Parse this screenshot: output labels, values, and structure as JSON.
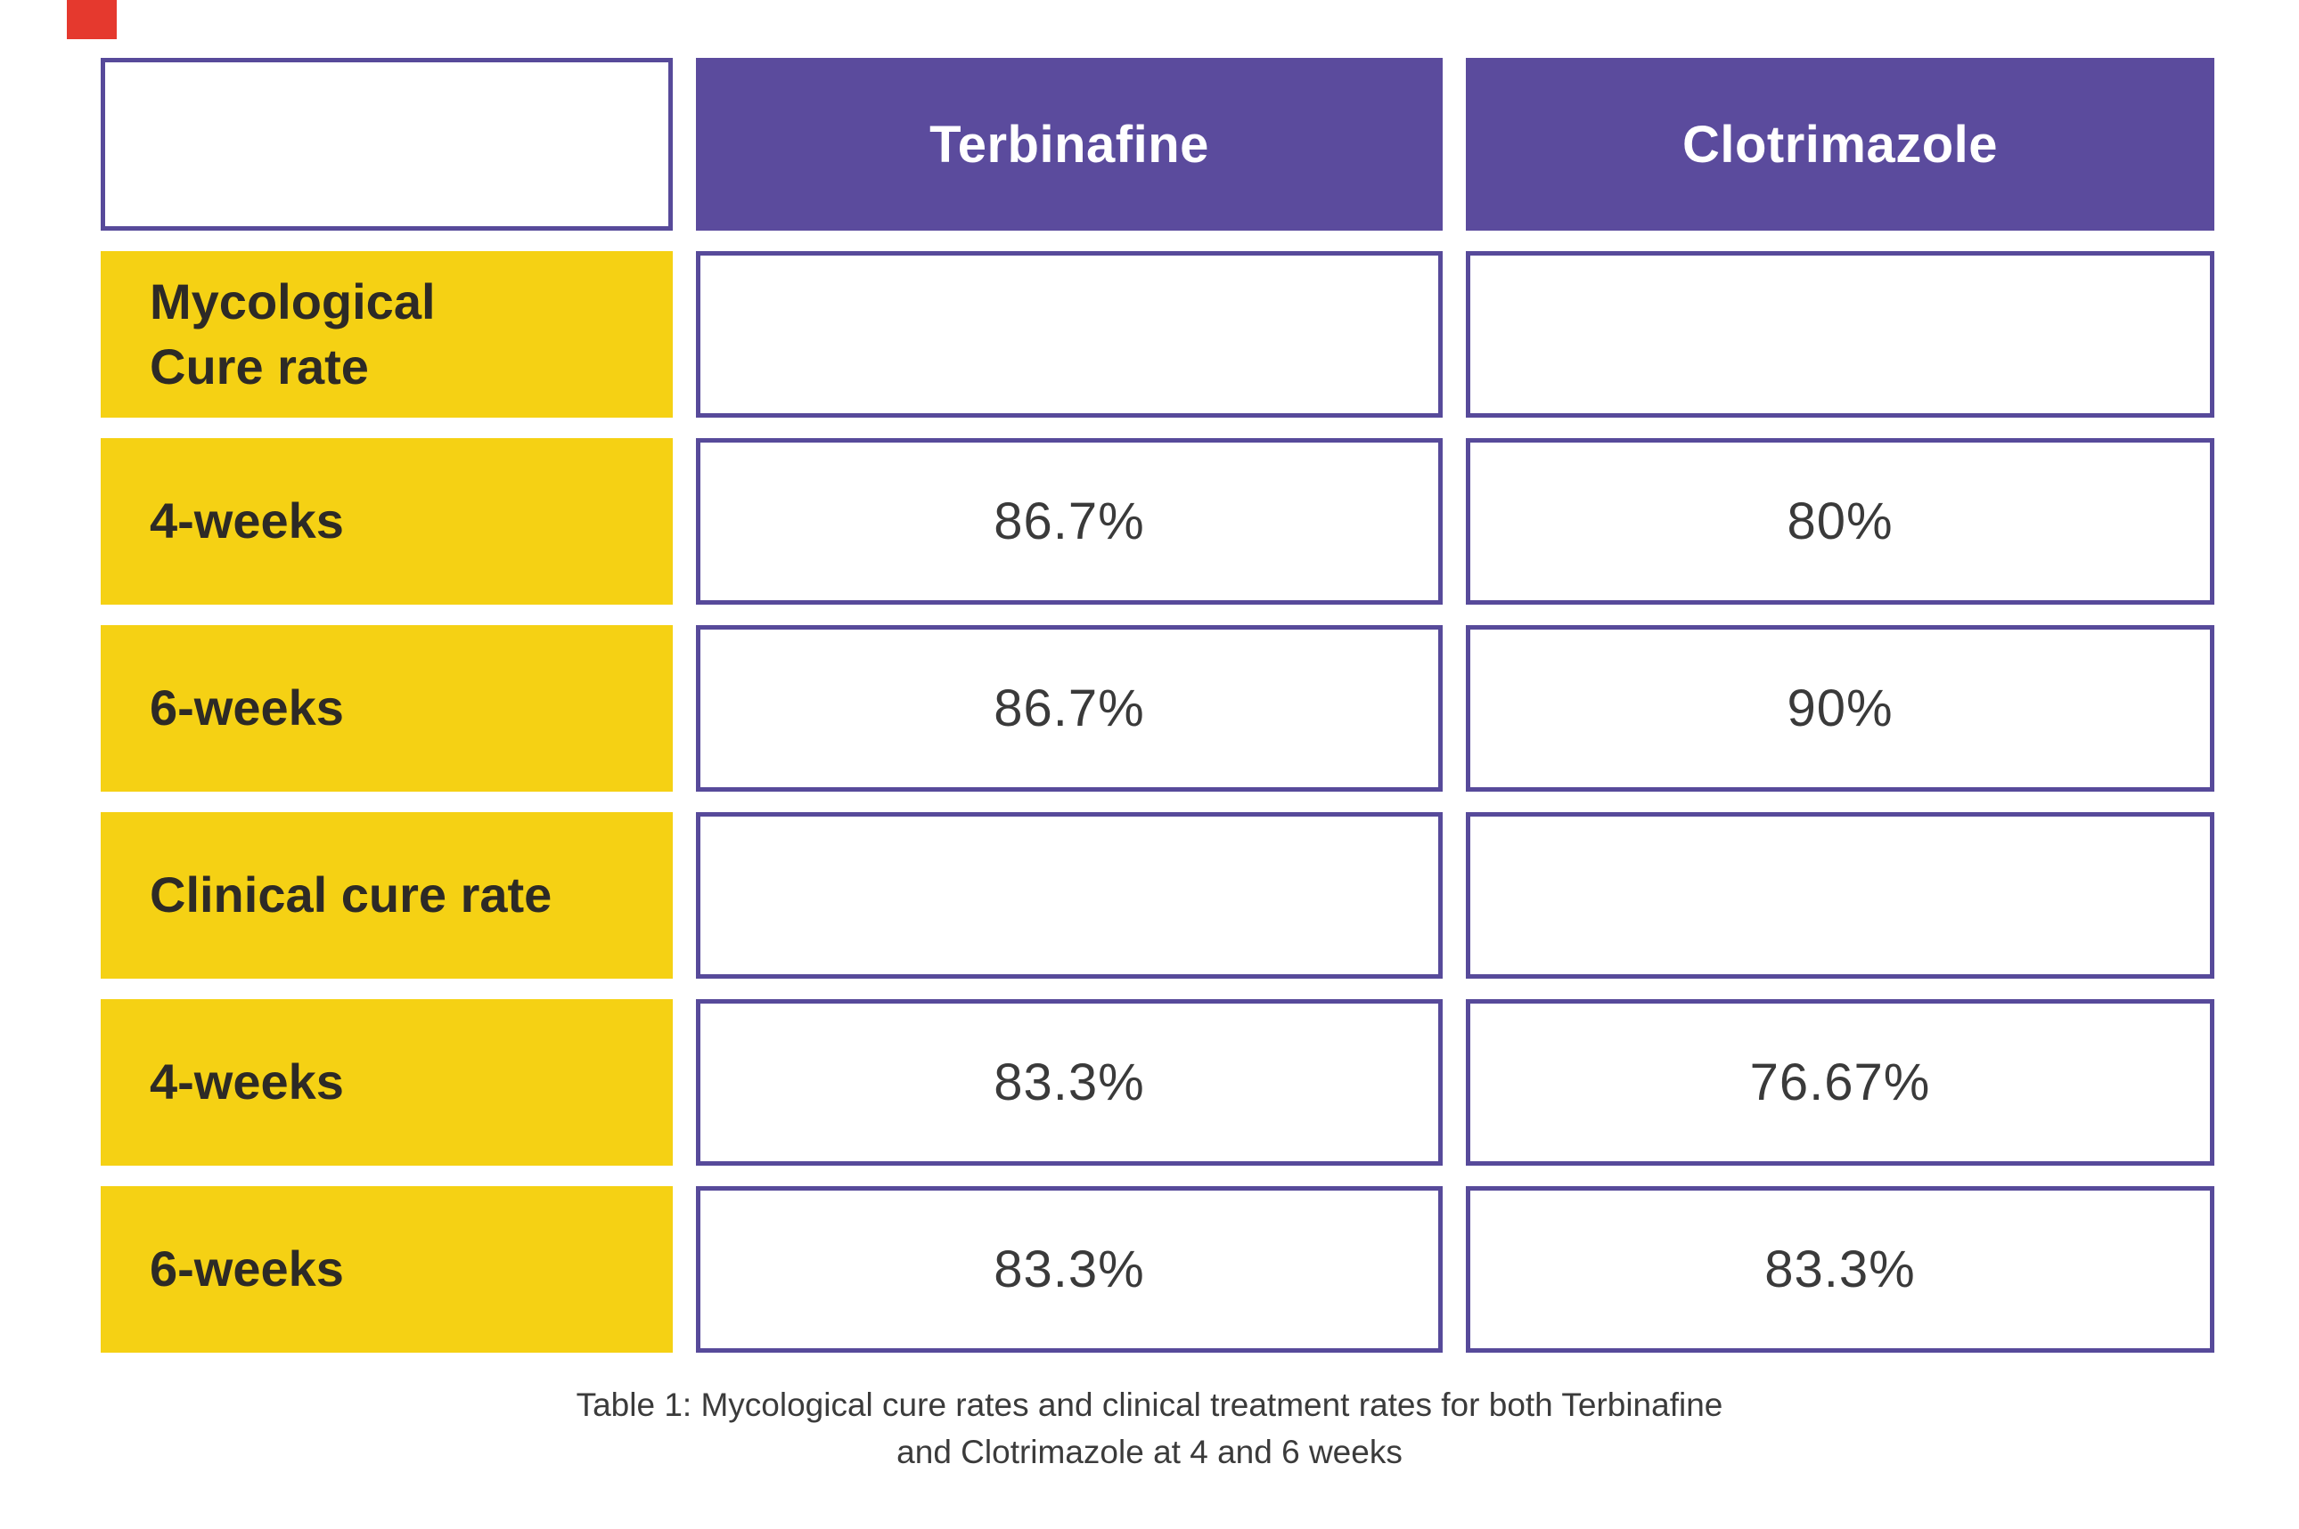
{
  "palette": {
    "header_purple": "#5b4b9d",
    "cell_border_purple": "#574a9a",
    "label_yellow": "#f5d114",
    "label_text_color": "#2d2a26",
    "value_text_color": "#3a3a3a",
    "header_text_color": "#ffffff",
    "marker_red": "#e5392e"
  },
  "table": {
    "columns": [
      "",
      "Terbinafine",
      "Clotrimazole"
    ],
    "rows": [
      {
        "label": "Mycological\nCure rate",
        "values": [
          "",
          ""
        ]
      },
      {
        "label": "4-weeks",
        "values": [
          "86.7%",
          "80%"
        ]
      },
      {
        "label": "6-weeks",
        "values": [
          "86.7%",
          "90%"
        ]
      },
      {
        "label": "Clinical cure rate",
        "values": [
          "",
          ""
        ]
      },
      {
        "label": "4-weeks",
        "values": [
          "83.3%",
          "76.67%"
        ]
      },
      {
        "label": "6-weeks",
        "values": [
          "83.3%",
          "83.3%"
        ]
      }
    ]
  },
  "caption": {
    "line1": "Table 1: Mycological cure rates and clinical treatment rates for both Terbinafine",
    "line2": "and Clotrimazole at 4 and 6 weeks"
  },
  "chart_data": {
    "type": "table",
    "title": "Table 1: Mycological cure rates and clinical treatment rates for both Terbinafine and Clotrimazole at 4 and 6 weeks",
    "columns": [
      "",
      "Terbinafine",
      "Clotrimazole"
    ],
    "rows": [
      [
        "Mycological Cure rate",
        "",
        ""
      ],
      [
        "4-weeks",
        "86.7%",
        "80%"
      ],
      [
        "6-weeks",
        "86.7%",
        "90%"
      ],
      [
        "Clinical cure rate",
        "",
        ""
      ],
      [
        "4-weeks",
        "83.3%",
        "76.67%"
      ],
      [
        "6-weeks",
        "83.3%",
        "83.3%"
      ]
    ],
    "series": [
      {
        "name": "Terbinafine",
        "mycological_cure_rate_pct": {
          "week4": 86.7,
          "week6": 86.7
        },
        "clinical_cure_rate_pct": {
          "week4": 83.3,
          "week6": 83.3
        }
      },
      {
        "name": "Clotrimazole",
        "mycological_cure_rate_pct": {
          "week4": 80,
          "week6": 90
        },
        "clinical_cure_rate_pct": {
          "week4": 76.67,
          "week6": 83.3
        }
      }
    ]
  }
}
